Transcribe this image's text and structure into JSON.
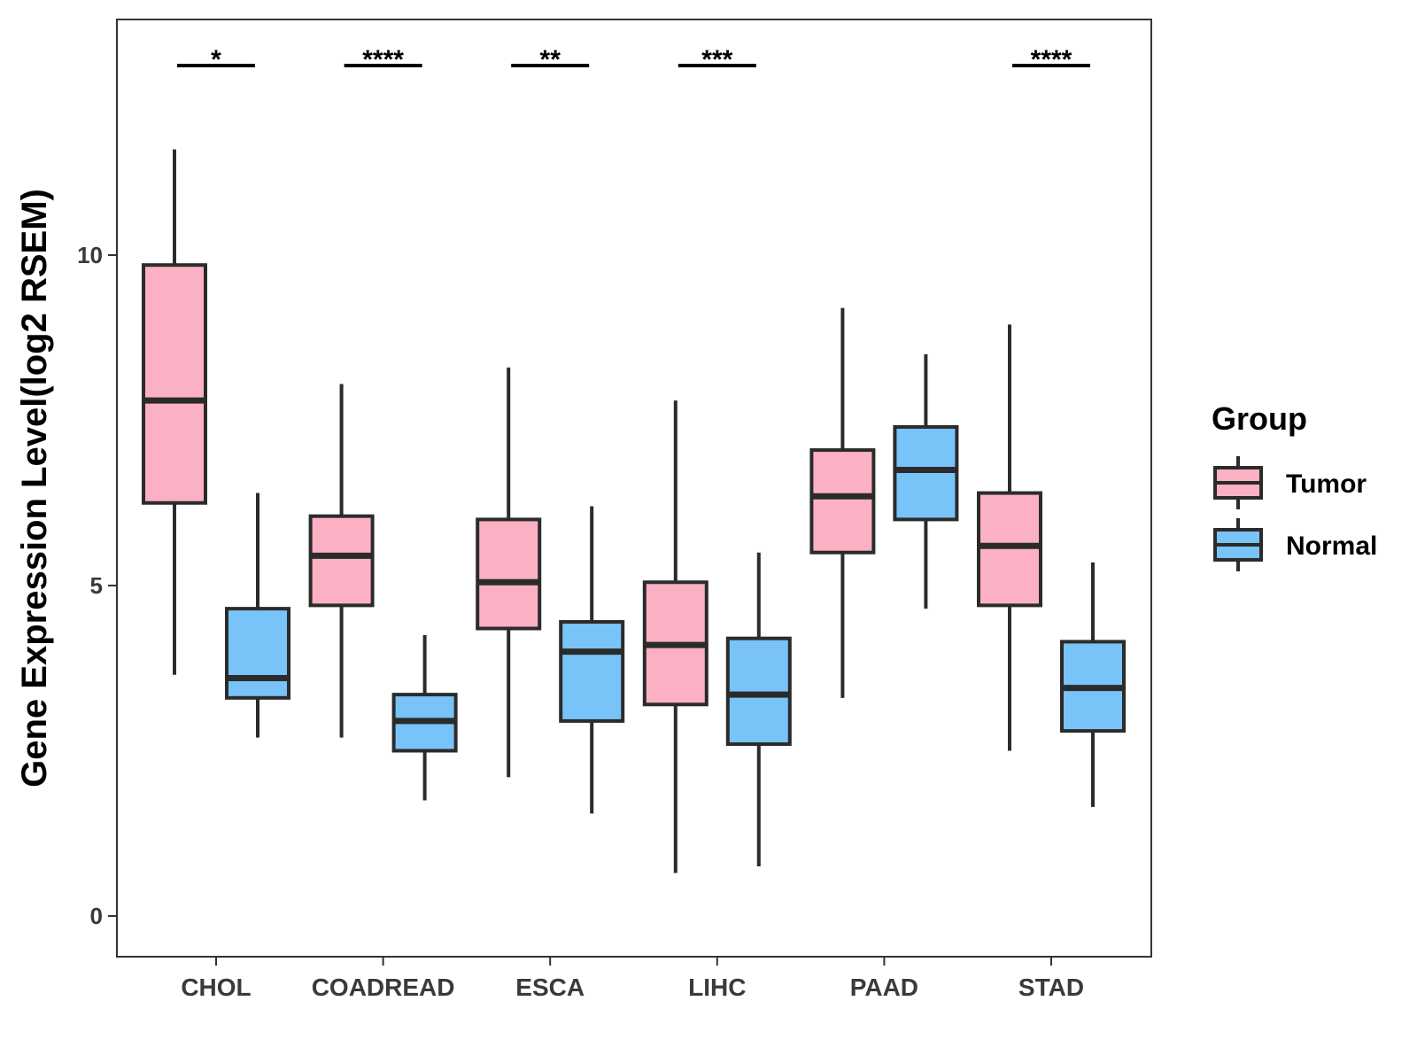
{
  "chart_data": {
    "type": "box",
    "title": "",
    "xlabel": "",
    "ylabel": "Gene Expression Level(log2 RSEM)",
    "ylim": [
      -0.6,
      13.6
    ],
    "yticks": [
      0,
      5,
      10
    ],
    "categories": [
      "CHOL",
      "COADREAD",
      "ESCA",
      "LIHC",
      "PAAD",
      "STAD"
    ],
    "legend": {
      "title": "Group",
      "position": "right",
      "entries": [
        {
          "name": "Tumor",
          "color": "#FBB1C3"
        },
        {
          "name": "Normal",
          "color": "#78C3F8"
        }
      ]
    },
    "series": [
      {
        "name": "Tumor",
        "color": "#FBB1C3",
        "boxes": [
          {
            "min": 3.65,
            "q1": 6.25,
            "median": 7.8,
            "q3": 9.85,
            "max": 11.6
          },
          {
            "min": 2.7,
            "q1": 4.7,
            "median": 5.45,
            "q3": 6.05,
            "max": 8.05
          },
          {
            "min": 2.1,
            "q1": 4.35,
            "median": 5.05,
            "q3": 6.0,
            "max": 8.3
          },
          {
            "min": 0.65,
            "q1": 3.2,
            "median": 4.1,
            "q3": 5.05,
            "max": 7.8
          },
          {
            "min": 3.3,
            "q1": 5.5,
            "median": 6.35,
            "q3": 7.05,
            "max": 9.2
          },
          {
            "min": 2.5,
            "q1": 4.7,
            "median": 5.6,
            "q3": 6.4,
            "max": 8.95
          }
        ]
      },
      {
        "name": "Normal",
        "color": "#78C3F8",
        "boxes": [
          {
            "min": 2.7,
            "q1": 3.3,
            "median": 3.6,
            "q3": 4.65,
            "max": 6.4
          },
          {
            "min": 1.75,
            "q1": 2.5,
            "median": 2.95,
            "q3": 3.35,
            "max": 4.25
          },
          {
            "min": 1.55,
            "q1": 2.95,
            "median": 4.0,
            "q3": 4.45,
            "max": 6.2
          },
          {
            "min": 0.75,
            "q1": 2.6,
            "median": 3.35,
            "q3": 4.2,
            "max": 5.5
          },
          {
            "min": 4.65,
            "q1": 6.0,
            "median": 6.75,
            "q3": 7.4,
            "max": 8.5
          },
          {
            "min": 1.65,
            "q1": 2.8,
            "median": 3.45,
            "q3": 4.15,
            "max": 5.35
          }
        ]
      }
    ],
    "significance": [
      "*",
      "****",
      "**",
      "***",
      "",
      "****"
    ]
  }
}
